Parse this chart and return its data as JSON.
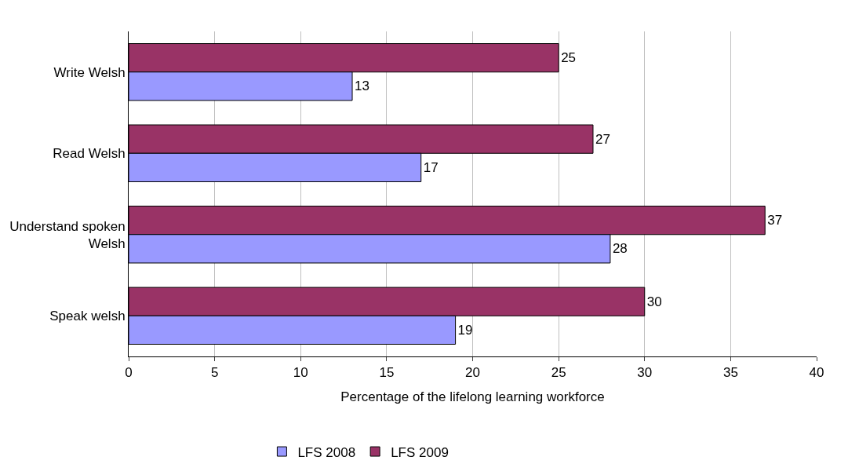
{
  "chart_data": {
    "type": "bar",
    "orientation": "horizontal",
    "categories": [
      "Write Welsh",
      "Read Welsh",
      "Understand spoken Welsh",
      "Speak welsh"
    ],
    "series": [
      {
        "name": "LFS 2008",
        "color": "#9999ff",
        "values": [
          13,
          17,
          28,
          19
        ]
      },
      {
        "name": "LFS 2009",
        "color": "#993366",
        "values": [
          25,
          27,
          37,
          30
        ]
      }
    ],
    "xlabel": "Percentage of the lifelong learning workforce",
    "xlim": [
      0,
      40
    ],
    "xticks": [
      0,
      5,
      10,
      15,
      20,
      25,
      30,
      35,
      40
    ],
    "grid": "x",
    "legend": "bottom",
    "data_labels": true
  }
}
